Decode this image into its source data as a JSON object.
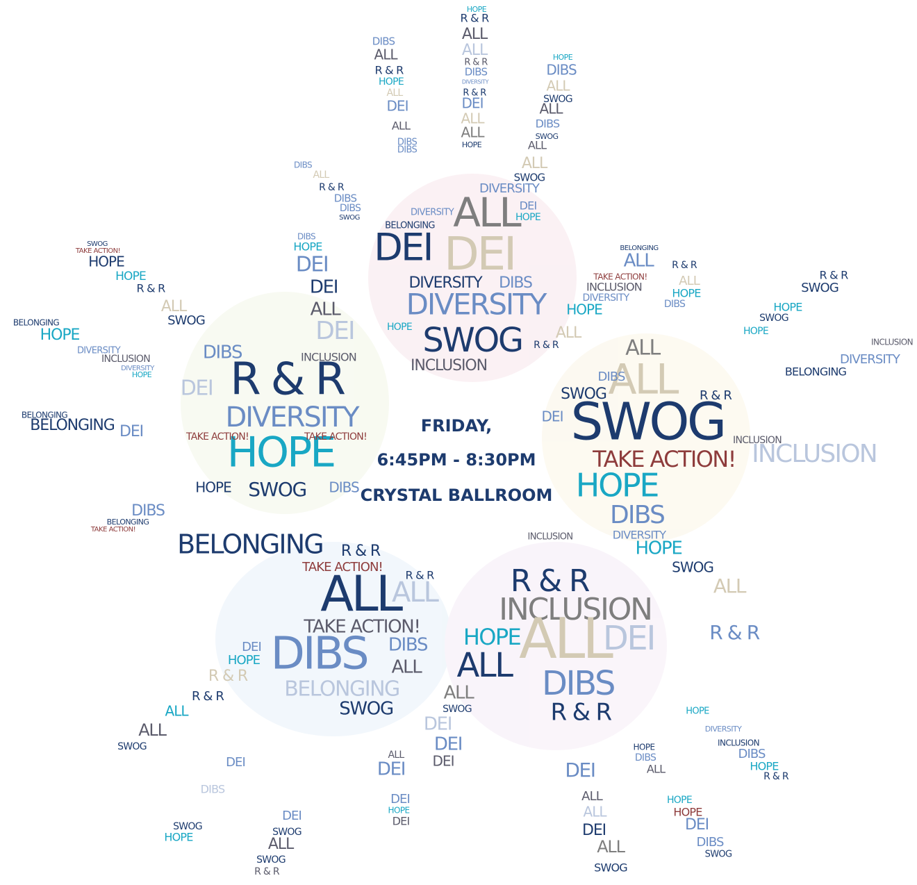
{
  "event": {
    "day": "FRIDAY,",
    "time": "6:45PM - 8:30PM",
    "location": "CRYSTAL BALLROOM"
  },
  "words": [
    "HOPE",
    "R & R",
    "ALL",
    "ALL",
    "R & R",
    "DIBS",
    "DIVERSITY",
    "R & R",
    "DEI",
    "ALL",
    "ALL",
    "HOPE",
    "DIBS",
    "ALL",
    "R & R",
    "HOPE",
    "ALL",
    "DEI",
    "ALL",
    "DIBS",
    "DIBS",
    "HOPE",
    "DIBS",
    "ALL",
    "SWOG",
    "ALL",
    "DIBS",
    "SWOG",
    "ALL",
    "ALL",
    "SWOG",
    "DIBS",
    "ALL",
    "R & R",
    "DIBS",
    "DIBS",
    "SWOG",
    "DIVERSITY",
    "DIVERSITY",
    "BELONGING",
    "ALL",
    "DEI",
    "HOPE",
    "DEI",
    "DEI",
    "DIVERSITY",
    "DIBS",
    "DIVERSITY",
    "HOPE",
    "ALL",
    "SWOG",
    "R & R",
    "INCLUSION",
    "HOPE",
    "BELONGING",
    "ALL",
    "TAKE ACTION!",
    "INCLUSION",
    "DIVERSITY",
    "SWOG",
    "TAKE ACTION!",
    "HOPE",
    "HOPE",
    "R & R",
    "ALL",
    "SWOG",
    "BELONGING",
    "HOPE",
    "DIVERSITY",
    "INCLUSION",
    "DIVERSITY",
    "HOPE",
    "DIBS",
    "HOPE",
    "DEI",
    "DEI",
    "ALL",
    "DEI",
    "DIBS",
    "INCLUSION",
    "R & R",
    "DEI",
    "DIVERSITY",
    "HOPE",
    "TAKE ACTION!",
    "TAKE ACTION!",
    "HOPE",
    "SWOG",
    "DIBS",
    "BELONGING",
    "BELONGING",
    "DEI",
    "DIBS",
    "BELONGING",
    "TAKE ACTION!",
    "ALL",
    "ALL",
    "SWOG",
    "DIBS",
    "DEI",
    "SWOG",
    "TAKE ACTION!",
    "INCLUSION",
    "HOPE",
    "DIBS",
    "DIVERSITY",
    "HOPE",
    "SWOG",
    "ALL",
    "R & R",
    "INCLUSION",
    "BELONGING",
    "DIVERSITY",
    "INCLUSION",
    "R & R",
    "SWOG",
    "HOPE",
    "SWOG",
    "HOPE",
    "R & R",
    "ALL",
    "HOPE",
    "DIBS",
    "R & R",
    "BELONGING",
    "R & R",
    "TAKE ACTION!",
    "R & R",
    "ALL",
    "ALL",
    "TAKE ACTION!",
    "DIBS",
    "DEI",
    "HOPE",
    "R & R",
    "BELONGING",
    "SWOG",
    "DIBS",
    "ALL",
    "ALL",
    "R & R",
    "ALL",
    "SWOG",
    "DEI",
    "DIBS",
    "SWOG",
    "HOPE",
    "DEI",
    "SWOG",
    "ALL",
    "SWOG",
    "R & R",
    "ALL",
    "DEI",
    "DEI",
    "HOPE",
    "DEI",
    "INCLUSION",
    "R & R",
    "INCLUSION",
    "HOPE",
    "ALL",
    "DEI",
    "ALL",
    "DIBS",
    "R & R",
    "ALL",
    "SWOG",
    "DEI",
    "DEI",
    "DEI",
    "DEI",
    "ALL",
    "ALL",
    "DEI",
    "ALL",
    "SWOG",
    "HOPE",
    "DIBS",
    "ALL",
    "HOPE",
    "HOPE",
    "DEI",
    "DIBS",
    "SWOG",
    "INCLUSION",
    "DIBS",
    "HOPE",
    "R & R",
    "HOPE",
    "DIVERSITY"
  ]
}
